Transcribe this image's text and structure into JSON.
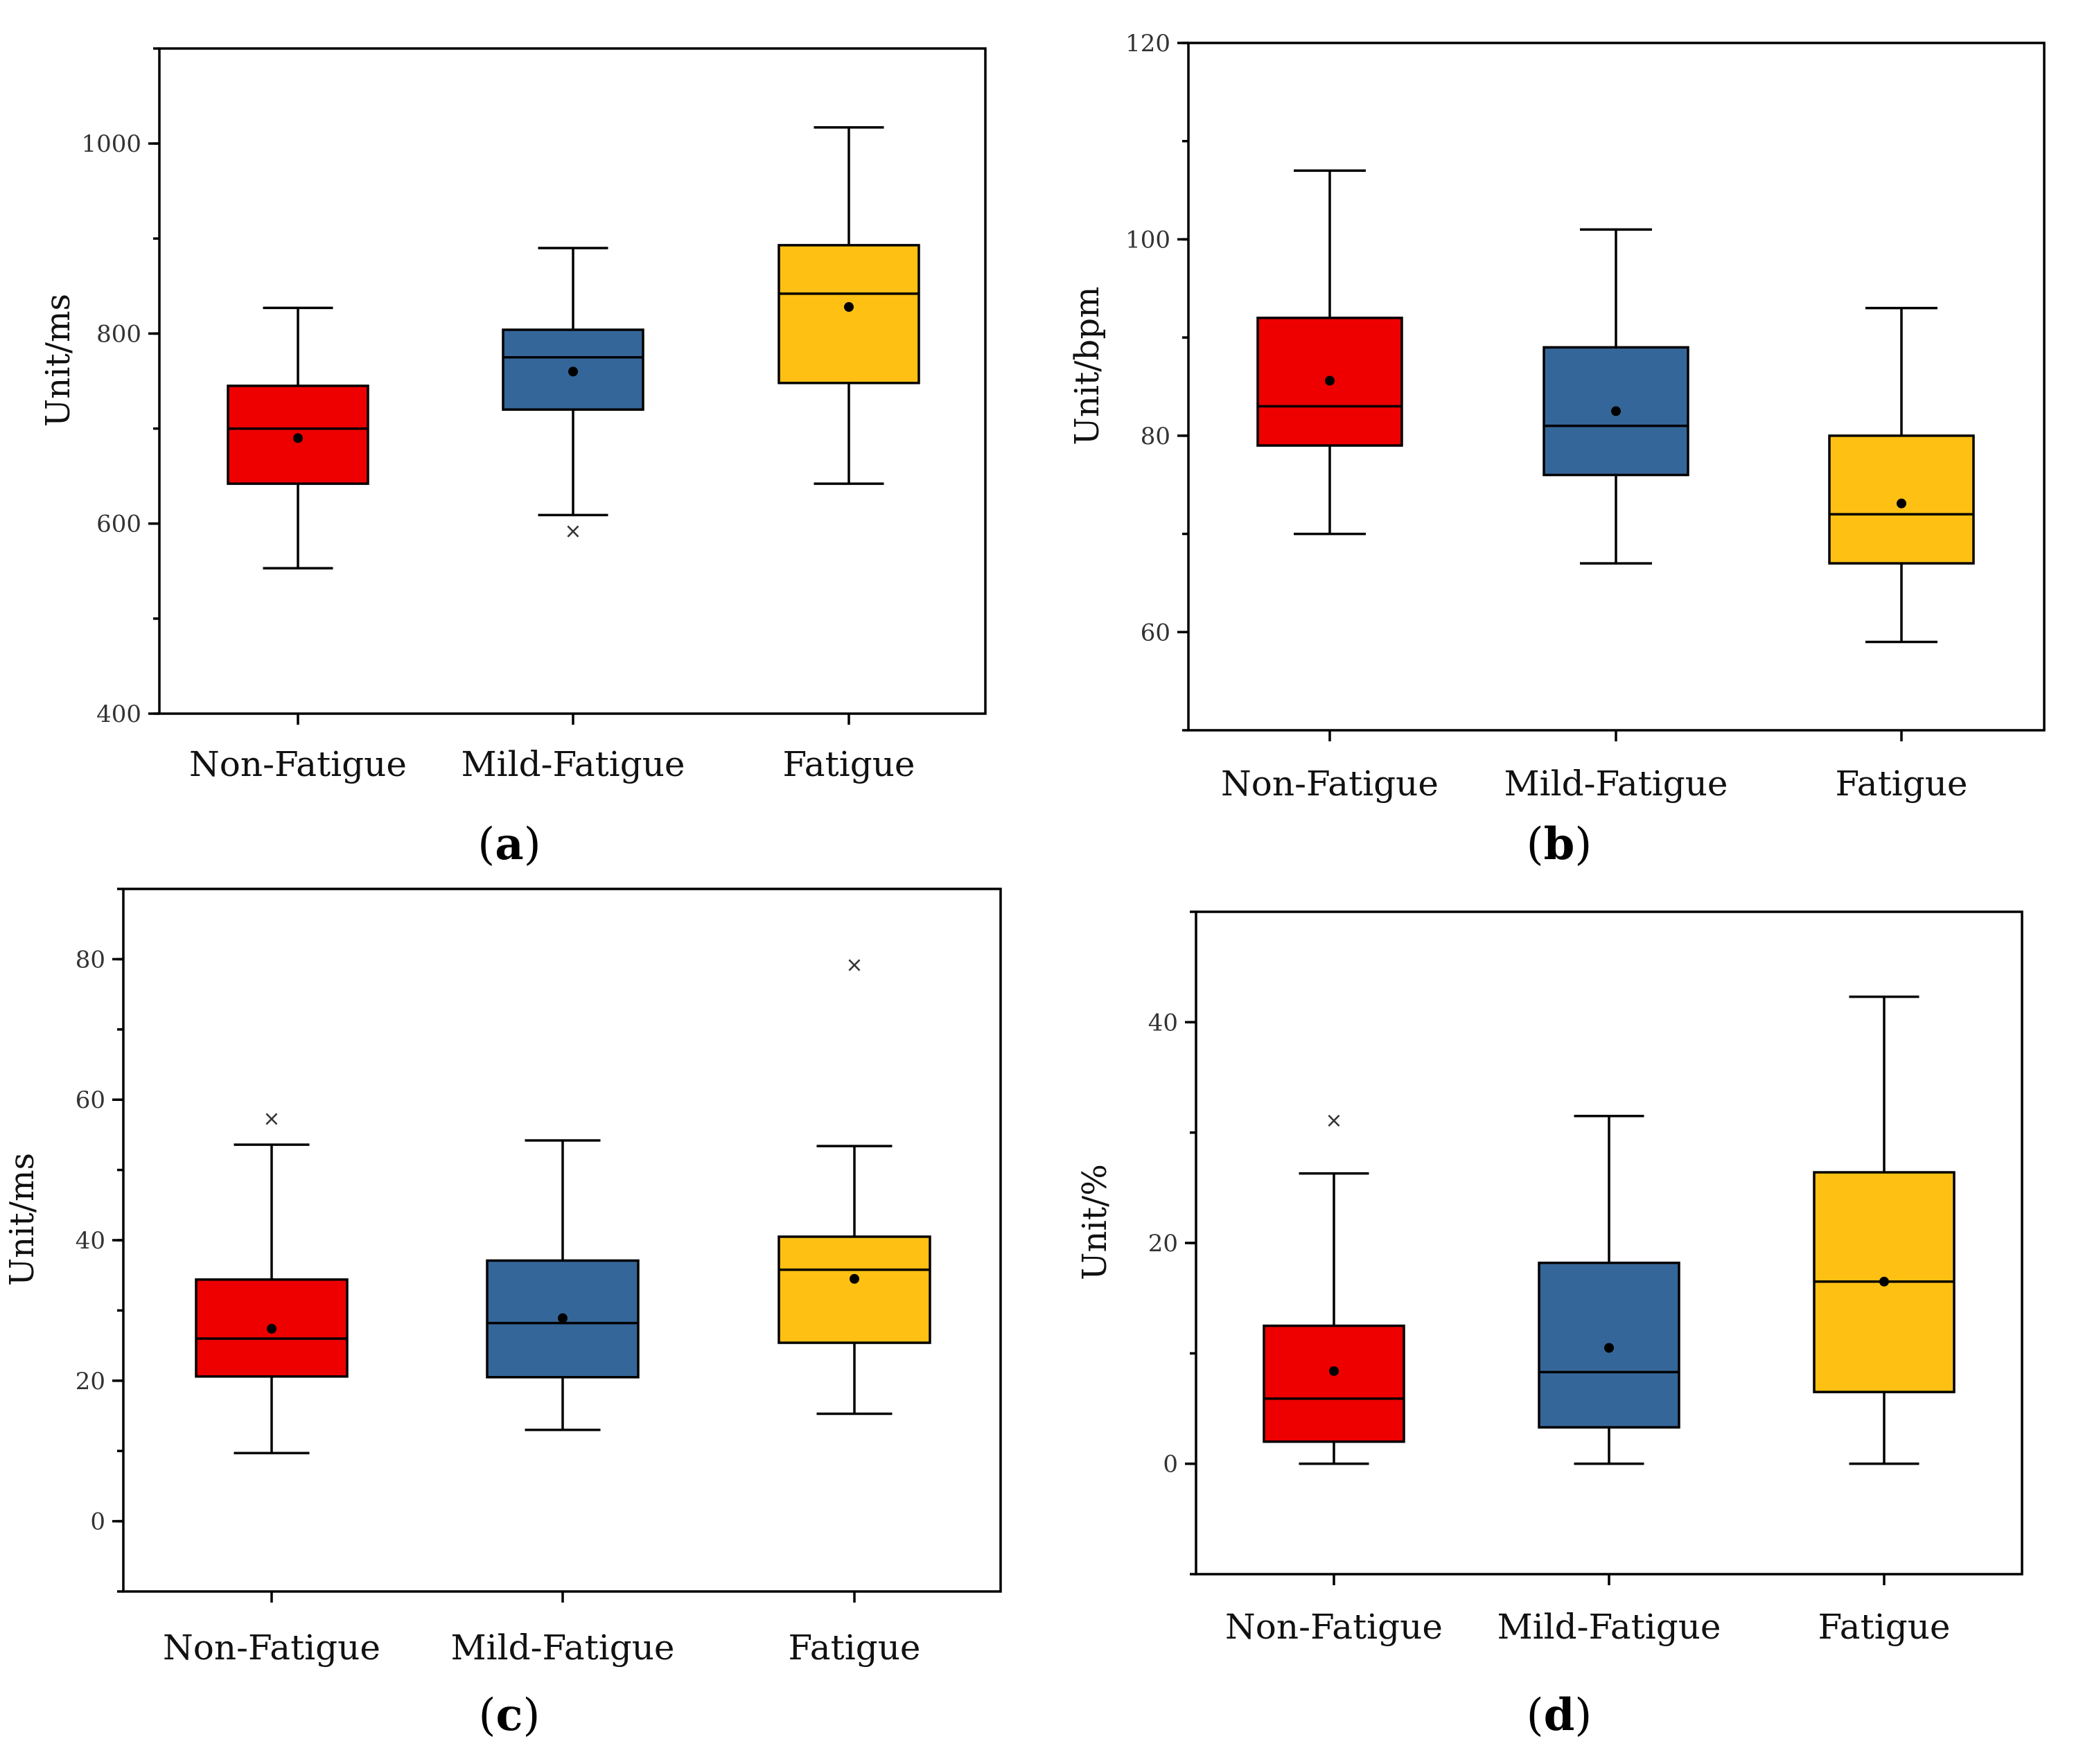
{
  "colors": {
    "Non-Fatigue": "#ee0000",
    "Mild-Fatigue": "#356699",
    "Fatigue": "#fdc013"
  },
  "chart_data": [
    {
      "type": "box",
      "panel": "(a)",
      "panel_letter": "a",
      "ylabel": "Unit/ms",
      "ylim": [
        400,
        1100
      ],
      "yticks": [
        400,
        600,
        800,
        1000
      ],
      "y_minor_step": 100,
      "categories": [
        "Non-Fatigue",
        "Mild-Fatigue",
        "Fatigue"
      ],
      "boxes": [
        {
          "category": "Non-Fatigue",
          "whisker_low": 553,
          "q1": 642,
          "median": 700,
          "q3": 745,
          "whisker_high": 827,
          "mean": 690,
          "outliers": []
        },
        {
          "category": "Mild-Fatigue",
          "whisker_low": 609,
          "q1": 720,
          "median": 775,
          "q3": 804,
          "whisker_high": 890,
          "mean": 760,
          "outliers": [
            592
          ]
        },
        {
          "category": "Fatigue",
          "whisker_low": 642,
          "q1": 748,
          "median": 842,
          "q3": 893,
          "whisker_high": 1017,
          "mean": 828,
          "outliers": []
        }
      ]
    },
    {
      "type": "box",
      "panel": "(b)",
      "panel_letter": "b",
      "ylabel": "Unit/bpm",
      "ylim": [
        50,
        120
      ],
      "yticks": [
        60,
        80,
        100,
        120
      ],
      "y_minor_step": 10,
      "categories": [
        "Non-Fatigue",
        "Mild-Fatigue",
        "Fatigue"
      ],
      "boxes": [
        {
          "category": "Non-Fatigue",
          "whisker_low": 70,
          "q1": 79,
          "median": 83,
          "q3": 92,
          "whisker_high": 107,
          "mean": 85.6,
          "outliers": []
        },
        {
          "category": "Mild-Fatigue",
          "whisker_low": 67,
          "q1": 76,
          "median": 81,
          "q3": 89,
          "whisker_high": 101,
          "mean": 82.5,
          "outliers": []
        },
        {
          "category": "Fatigue",
          "whisker_low": 59,
          "q1": 67,
          "median": 72,
          "q3": 80,
          "whisker_high": 93,
          "mean": 73.1,
          "outliers": []
        }
      ]
    },
    {
      "type": "box",
      "panel": "(c)",
      "panel_letter": "c",
      "ylabel": "Unit/ms",
      "ylim": [
        -10,
        90
      ],
      "yticks": [
        0,
        20,
        40,
        60,
        80
      ],
      "y_minor_step": 10,
      "categories": [
        "Non-Fatigue",
        "Mild-Fatigue",
        "Fatigue"
      ],
      "boxes": [
        {
          "category": "Non-Fatigue",
          "whisker_low": 9.7,
          "q1": 20.6,
          "median": 26,
          "q3": 34.4,
          "whisker_high": 53.6,
          "mean": 27.4,
          "outliers": [
            57.3
          ]
        },
        {
          "category": "Mild-Fatigue",
          "whisker_low": 13,
          "q1": 20.5,
          "median": 28.2,
          "q3": 37.1,
          "whisker_high": 54.2,
          "mean": 28.9,
          "outliers": []
        },
        {
          "category": "Fatigue",
          "whisker_low": 15.3,
          "q1": 25.4,
          "median": 35.8,
          "q3": 40.5,
          "whisker_high": 53.4,
          "mean": 34.5,
          "outliers": [
            79.2
          ]
        }
      ]
    },
    {
      "type": "box",
      "panel": "(d)",
      "panel_letter": "d",
      "ylabel": "Unit/%",
      "ylim": [
        -10,
        50
      ],
      "yticks": [
        0,
        20,
        40
      ],
      "y_minor_step": 10,
      "categories": [
        "Non-Fatigue",
        "Mild-Fatigue",
        "Fatigue"
      ],
      "boxes": [
        {
          "category": "Non-Fatigue",
          "whisker_low": 0,
          "q1": 2,
          "median": 5.9,
          "q3": 12.5,
          "whisker_high": 26.3,
          "mean": 8.4,
          "outliers": [
            31.1
          ]
        },
        {
          "category": "Mild-Fatigue",
          "whisker_low": 0,
          "q1": 3.3,
          "median": 8.3,
          "q3": 18.2,
          "whisker_high": 31.5,
          "mean": 10.5,
          "outliers": []
        },
        {
          "category": "Fatigue",
          "whisker_low": 0,
          "q1": 6.5,
          "median": 16.5,
          "q3": 26.4,
          "whisker_high": 42.3,
          "mean": 16.5,
          "outliers": []
        }
      ]
    }
  ]
}
